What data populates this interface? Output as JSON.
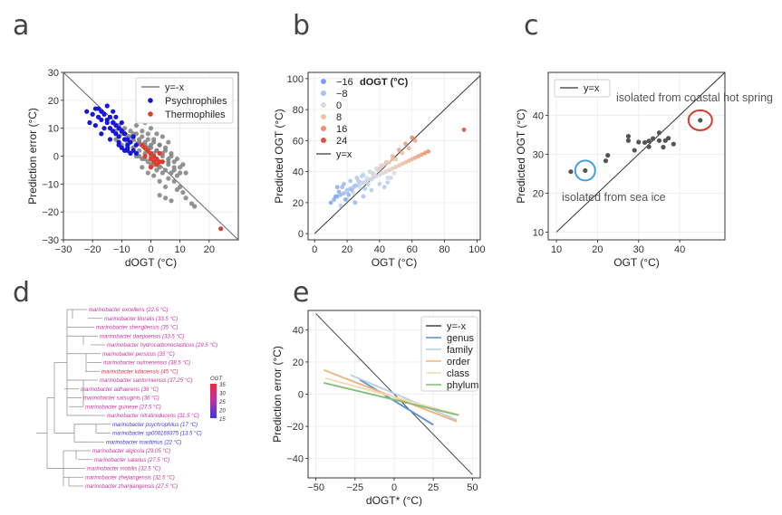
{
  "panels": {
    "a": "a",
    "b": "b",
    "c": "c",
    "d": "d",
    "e": "e"
  },
  "chart_data": [
    {
      "id": "a",
      "type": "scatter",
      "xlabel": "dOGT (°C)",
      "ylabel": "Prediction error (°C)",
      "xlim": [
        -30,
        30
      ],
      "ylim": [
        -30,
        30
      ],
      "xticks": [
        -30,
        -20,
        -10,
        0,
        10,
        20
      ],
      "yticks": [
        -30,
        -20,
        -10,
        0,
        10,
        20,
        30
      ],
      "reference_line": "y=-x",
      "legend": [
        "y=-x",
        "Psychrophiles",
        "Thermophiles"
      ],
      "colors": {
        "line": "#666666",
        "other": "#808080",
        "psychro": "#1515dd",
        "thermo": "#e03c2e"
      },
      "series": [
        {
          "name": "Other",
          "x": [
            -14,
            -13,
            -12,
            -11,
            -10,
            -9,
            -8,
            -7,
            -6,
            -5,
            -4,
            -3,
            -2,
            -1,
            0,
            1,
            2,
            3,
            4,
            5,
            6,
            7,
            8,
            9,
            10,
            11,
            12,
            -12,
            -10,
            -8,
            -6,
            -4,
            -2,
            0,
            2,
            4,
            6,
            8,
            10,
            -9,
            -7,
            -5,
            -3,
            -1,
            1,
            3,
            5,
            7,
            9,
            -6,
            -4,
            -2,
            0,
            2,
            4,
            6,
            8,
            -5,
            -3,
            -1,
            1,
            3,
            5,
            7,
            -8,
            -6,
            -4,
            -2,
            0,
            2,
            4,
            6,
            8,
            10,
            -3,
            -1,
            1,
            3,
            5,
            -2,
            0,
            2,
            4,
            6,
            9,
            11,
            3,
            5,
            7,
            1,
            -1,
            -4,
            -7,
            -10,
            -11,
            12,
            14,
            15
          ],
          "y": [
            10,
            12,
            9,
            11,
            8,
            10,
            7,
            9,
            6,
            8,
            5,
            7,
            4,
            6,
            3,
            5,
            2,
            4,
            1,
            3,
            -1,
            1,
            -2,
            -1,
            -4,
            -3,
            -6,
            6,
            4,
            5,
            3,
            2,
            1,
            0,
            -1,
            -2,
            -3,
            -5,
            -6,
            2,
            1,
            0,
            -1,
            -2,
            -3,
            -4,
            -5,
            -6,
            -7,
            8,
            6,
            5,
            4,
            2,
            0,
            -2,
            -4,
            11,
            9,
            8,
            6,
            4,
            2,
            0,
            4,
            3,
            0,
            -1,
            -3,
            -5,
            -6,
            -8,
            -9,
            -11,
            -4,
            -6,
            -7,
            -9,
            -11,
            12,
            10,
            8,
            7,
            5,
            -12,
            -13,
            -14,
            -15,
            -16,
            1,
            3,
            5,
            7,
            9,
            11,
            -15,
            -17,
            -18
          ]
        },
        {
          "name": "Psychrophiles",
          "x": [
            -22,
            -20,
            -19,
            -18,
            -17,
            -16,
            -15,
            -14,
            -13,
            -12,
            -11,
            -10,
            -9,
            -8,
            -21,
            -19,
            -17,
            -16,
            -15,
            -13,
            -12,
            -11,
            -10,
            -9,
            -8,
            -7,
            -18,
            -17,
            -15,
            -14,
            -12,
            -11,
            -10,
            -8,
            -7,
            -6,
            -5,
            -14,
            -13,
            -11,
            -10,
            -9,
            -8,
            -6,
            -5
          ],
          "y": [
            16,
            15,
            17,
            14,
            16,
            15,
            13,
            14,
            12,
            11,
            10,
            9,
            8,
            6,
            12,
            11,
            13,
            10,
            12,
            9,
            8,
            7,
            9,
            6,
            4,
            5,
            17,
            8,
            18,
            10,
            14,
            4,
            3,
            2,
            1,
            7,
            4,
            6,
            16,
            5,
            12,
            2,
            3,
            2,
            1
          ]
        },
        {
          "name": "Thermophiles",
          "x": [
            -3,
            -2,
            -1,
            0,
            1,
            2,
            3,
            -2,
            0,
            1,
            2,
            3,
            4,
            0,
            2,
            24
          ],
          "y": [
            4,
            3,
            2,
            1,
            0,
            -1,
            -2,
            0,
            -1,
            -2,
            -3,
            1,
            -2,
            -4,
            -3,
            -26
          ]
        }
      ]
    },
    {
      "id": "b",
      "type": "scatter",
      "xlabel": "OGT (°C)",
      "ylabel": "Predicted OGT (°C)",
      "xlim": [
        -4,
        102
      ],
      "ylim": [
        -4,
        104
      ],
      "xticks": [
        0,
        20,
        40,
        60,
        80,
        100
      ],
      "yticks": [
        0,
        20,
        40,
        60,
        80,
        100
      ],
      "reference_line": "y=x",
      "legend_title": "dOGT (°C)",
      "legend": [
        "−16",
        "−8",
        "0",
        "8",
        "16",
        "24",
        "y=x"
      ],
      "legend_colors": [
        "#7b9ff2",
        "#a9c3f6",
        "#d7dce4",
        "#f1c2a6",
        "#ea9171",
        "#d65546"
      ],
      "points": {
        "x": [
          10,
          12,
          14,
          16,
          18,
          20,
          22,
          24,
          26,
          28,
          30,
          32,
          34,
          36,
          38,
          40,
          42,
          44,
          46,
          48,
          50,
          52,
          54,
          56,
          58,
          60,
          62,
          64,
          66,
          68,
          70,
          14,
          18,
          22,
          26,
          30,
          34,
          38,
          42,
          46,
          50,
          54,
          58,
          62,
          16,
          20,
          24,
          28,
          32,
          36,
          40,
          44,
          48,
          52,
          56,
          60,
          25,
          30,
          35,
          40,
          45,
          20,
          24,
          28,
          32,
          36,
          40,
          44,
          48,
          13,
          15,
          17,
          19,
          21,
          23,
          25,
          27,
          29,
          31,
          33,
          35,
          37,
          39,
          41,
          43,
          45,
          47,
          49,
          92
        ],
        "y": [
          20,
          22,
          24,
          25,
          26,
          28,
          29,
          30,
          31,
          32,
          33,
          34,
          35,
          36,
          37,
          38,
          39,
          40,
          41,
          42,
          43,
          44,
          45,
          46,
          47,
          48,
          49,
          50,
          51,
          52,
          53,
          30,
          32,
          34,
          36,
          38,
          40,
          42,
          44,
          46,
          48,
          52,
          55,
          60,
          18,
          22,
          26,
          30,
          34,
          38,
          42,
          46,
          50,
          54,
          58,
          62,
          20,
          24,
          28,
          32,
          36,
          27,
          30,
          33,
          36,
          39,
          42,
          45,
          48,
          24,
          27,
          30,
          22,
          25,
          28,
          31,
          34,
          37,
          29,
          32,
          35,
          38,
          41,
          44,
          30,
          33,
          36,
          39,
          67
        ],
        "dogt": [
          -14,
          -13,
          -12,
          -11,
          -10,
          -9,
          -8,
          -7,
          -6,
          -5,
          -4,
          -3,
          -2,
          -1,
          0,
          1,
          2,
          3,
          4,
          5,
          6,
          7,
          8,
          9,
          10,
          11,
          12,
          13,
          14,
          15,
          16,
          -12,
          -10,
          -8,
          -6,
          -4,
          -2,
          0,
          2,
          4,
          6,
          8,
          10,
          12,
          -6,
          -4,
          -2,
          0,
          2,
          4,
          6,
          8,
          10,
          12,
          14,
          16,
          -10,
          -8,
          -6,
          -4,
          -2,
          -6,
          -4,
          -2,
          0,
          2,
          4,
          6,
          8,
          -14,
          -12,
          -10,
          -14,
          -12,
          -10,
          -8,
          -6,
          -4,
          -6,
          -4,
          -2,
          0,
          2,
          4,
          -6,
          -4,
          -2,
          0,
          24
        ]
      }
    },
    {
      "id": "c",
      "type": "scatter",
      "xlabel": "OGT (°C)",
      "ylabel": "Predicted OGT (°C)",
      "xlim": [
        8,
        51
      ],
      "ylim": [
        8,
        51
      ],
      "xticks": [
        10,
        20,
        30,
        40
      ],
      "yticks": [
        10,
        20,
        30,
        40
      ],
      "reference_line": "y=x",
      "legend": [
        "y=x"
      ],
      "annotations": [
        "isolated from coastal hot spring",
        "isolated from sea ice"
      ],
      "colors": {
        "points": "#555555",
        "ring_cold": "#3fa3e0",
        "ring_hot": "#d93a2b"
      },
      "points": {
        "x": [
          13.5,
          17,
          22,
          22.5,
          27.5,
          27.5,
          29,
          30,
          31.5,
          32.5,
          32.5,
          33.5,
          35,
          35,
          36,
          36.5,
          37.25,
          38.5,
          45
        ],
        "y": [
          25.5,
          25.8,
          28.3,
          29.7,
          34.6,
          33.5,
          31.0,
          33.1,
          33.0,
          31.9,
          33.4,
          34.0,
          33.5,
          35.5,
          31.8,
          33.5,
          34.1,
          32.6,
          38.7
        ]
      }
    },
    {
      "id": "d",
      "type": "table",
      "legend_title": "OGT",
      "colorbar_ticks": [
        "35",
        "30",
        "25",
        "20",
        "15"
      ],
      "leaves": [
        "marinobacter excellens (22.5 °C)",
        "marinobacter litoralis (33.5 °C)",
        "marinobacter shengliensis (35 °C)",
        "marinobacter daepoensis (33.5 °C)",
        "marinobacter hydrocarbonoclasticus (29.5 °C)",
        "marinobacter persicus (35 °C)",
        "marinobacter oulmenensis (38.5 °C)",
        "marinobacter lutaoensis (45 °C)",
        "marinobacter santoriniensis (37.25 °C)",
        "marinobacter adhaerens (36 °C)",
        "marinobacter salsuginis (36 °C)",
        "marinobacter guineae (27.5 °C)",
        "marinobacter nitratireducens (31.5 °C)",
        "marinobacter psychrophilus (17 °C)",
        "marinobacter sp000169375 (13.5 °C)",
        "marinobacter maritimus (22 °C)",
        "marinobacter algicola (29.05 °C)",
        "marinobacter salarius (27.5 °C)",
        "marinobacter mobilis (32.5 °C)",
        "marinobacter zhejiangensis (32.5 °C)",
        "marinobacter zhanjiangensis (27.5 °C)"
      ],
      "leaf_ogt": [
        22.5,
        33.5,
        35,
        33.5,
        29.5,
        35,
        38.5,
        45,
        37.25,
        36,
        36,
        27.5,
        31.5,
        17,
        13.5,
        22,
        29.05,
        27.5,
        32.5,
        32.5,
        27.5
      ],
      "colors": {
        "cold": "#3d3ad8",
        "warm": "#c4369c",
        "hot": "#ee2a4a"
      }
    },
    {
      "id": "e",
      "type": "line",
      "xlabel": "dOGT* (°C)",
      "ylabel": "Prediction error (°C)",
      "xlim": [
        -55,
        55
      ],
      "ylim": [
        -52,
        52
      ],
      "xticks": [
        -50,
        -25,
        0,
        25,
        50
      ],
      "yticks": [
        -40,
        -20,
        0,
        20,
        40
      ],
      "legend": [
        "y=-x",
        "genus",
        "family",
        "order",
        "class",
        "phylum"
      ],
      "series": [
        {
          "name": "y=-x",
          "x": [
            -50,
            50
          ],
          "y": [
            50,
            -50
          ],
          "color": "#444444"
        },
        {
          "name": "genus",
          "x": [
            -22,
            25
          ],
          "y": [
            9,
            -19
          ],
          "color": "#5b8fd4"
        },
        {
          "name": "family",
          "x": [
            -28,
            40
          ],
          "y": [
            12,
            -16
          ],
          "color": "#b3cfe6"
        },
        {
          "name": "order",
          "x": [
            -45,
            40
          ],
          "y": [
            15,
            -17
          ],
          "color": "#f2b27a"
        },
        {
          "name": "class",
          "x": [
            -44,
            42
          ],
          "y": [
            10,
            -13
          ],
          "color": "#f7d8b3"
        },
        {
          "name": "phylum",
          "x": [
            -45,
            41
          ],
          "y": [
            7,
            -13
          ],
          "color": "#7fbf75"
        }
      ]
    }
  ]
}
